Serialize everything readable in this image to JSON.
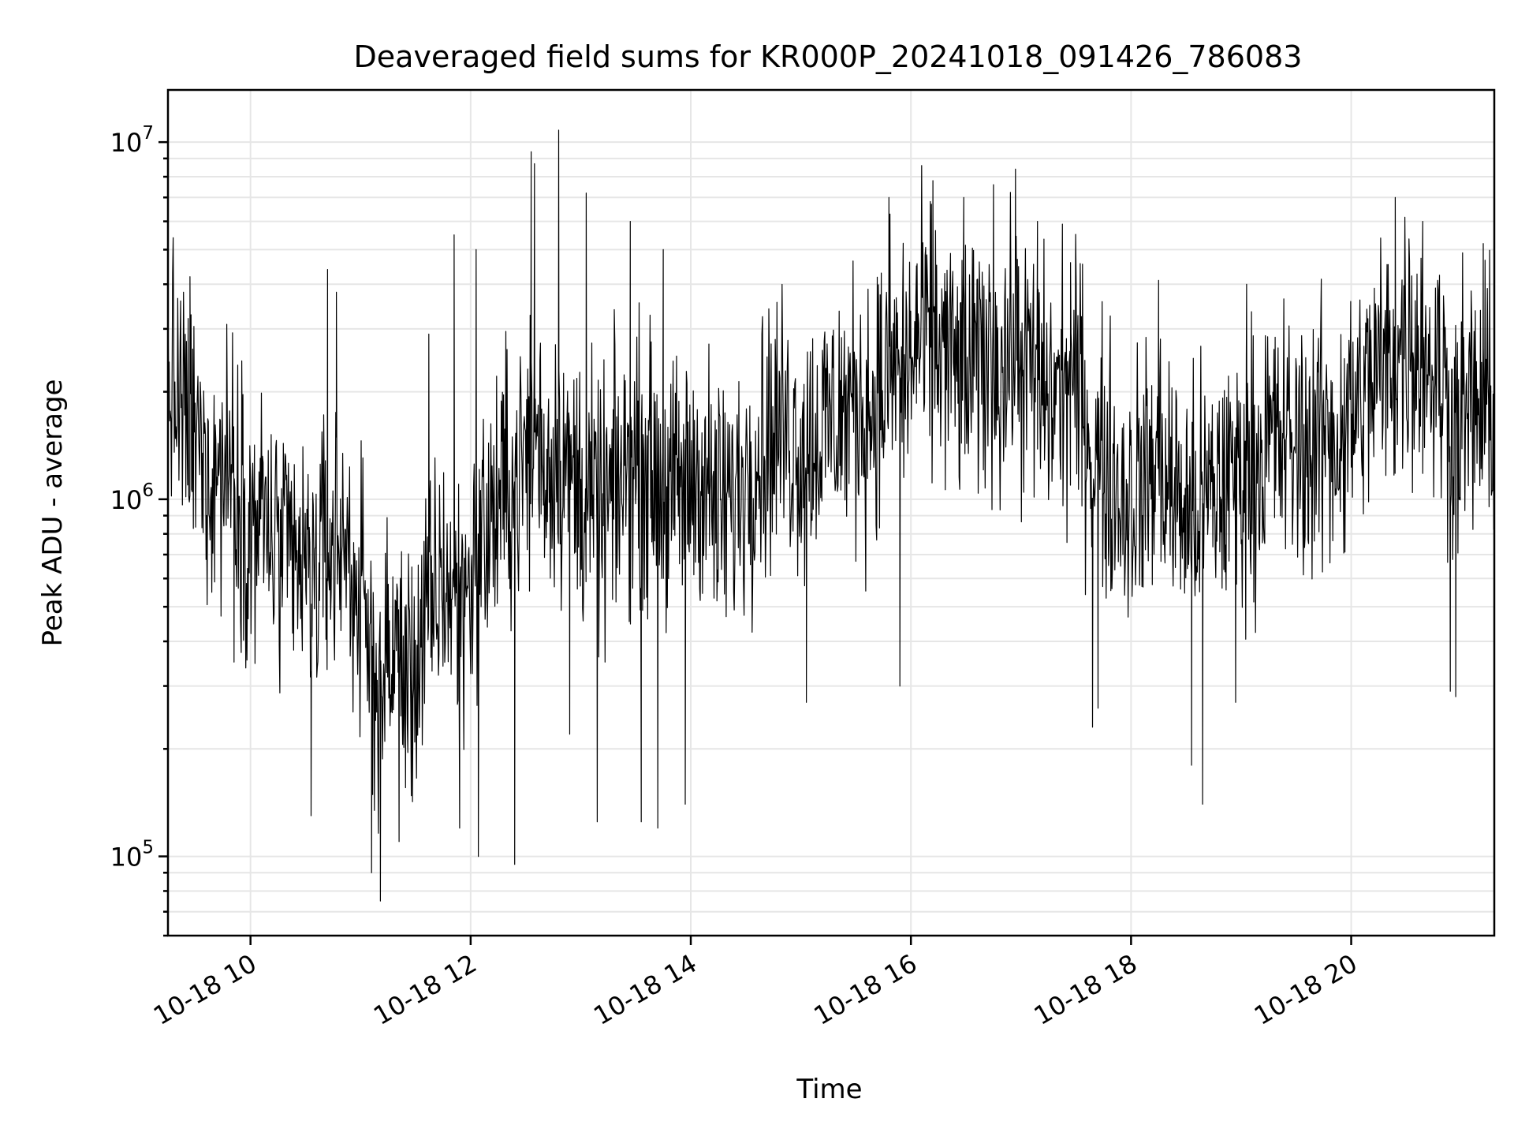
{
  "chart_data": {
    "type": "line",
    "title": "Deaveraged field sums for KR000P_20241018_091426_786083",
    "xlabel": "Time",
    "ylabel": "Peak ADU - average",
    "yscale": "log",
    "ylim": [
      60000,
      14000000
    ],
    "xlim_hours": [
      9.25,
      21.3
    ],
    "grid": true,
    "x_ticks": [
      "10-18 10",
      "10-18 12",
      "10-18 14",
      "10-18 16",
      "10-18 18",
      "10-18 20"
    ],
    "x_tick_hours": [
      10,
      12,
      14,
      16,
      18,
      20
    ],
    "y_ticks": [
      {
        "value": 100000,
        "base": "10",
        "exp": "5"
      },
      {
        "value": 1000000,
        "base": "10",
        "exp": "6"
      },
      {
        "value": 10000000,
        "base": "10",
        "exp": "7"
      }
    ],
    "line_color": "#000000",
    "series": [
      {
        "x": [
          9.25,
          9.45,
          9.65,
          9.85,
          10.0,
          10.1,
          10.25,
          10.4,
          10.55,
          10.7,
          10.85,
          11.0,
          11.1,
          11.2,
          11.3,
          11.45,
          11.6,
          11.75,
          11.9,
          12.05,
          12.2,
          12.35,
          12.5,
          12.58,
          12.7,
          12.78,
          12.9,
          13.05,
          13.2,
          13.35,
          13.5,
          13.65,
          13.8,
          13.95,
          14.1,
          14.25,
          14.4,
          14.55,
          14.7,
          14.85,
          15.0,
          15.15,
          15.3,
          15.45,
          15.6,
          15.75,
          15.85,
          15.95,
          16.05,
          16.2,
          16.35,
          16.5,
          16.65,
          16.75,
          16.85,
          16.95,
          17.1,
          17.25,
          17.4,
          17.55,
          17.65,
          17.8,
          17.95,
          18.1,
          18.25,
          18.4,
          18.55,
          18.7,
          18.85,
          19.0,
          19.15,
          19.3,
          19.45,
          19.6,
          19.75,
          19.9,
          20.05,
          20.2,
          20.35,
          20.5,
          20.65,
          20.8,
          20.95,
          21.1,
          21.3
        ],
        "y": [
          2200000,
          1500000,
          1200000,
          1300000,
          800000,
          900000,
          700000,
          650000,
          600000,
          700000,
          800000,
          500000,
          350000,
          300000,
          400000,
          300000,
          450000,
          600000,
          500000,
          700000,
          900000,
          1100000,
          1300000,
          1600000,
          1200000,
          1400000,
          1200000,
          1000000,
          900000,
          1100000,
          1300000,
          1200000,
          1000000,
          1100000,
          1200000,
          900000,
          1000000,
          1300000,
          1500000,
          1600000,
          1400000,
          1500000,
          1700000,
          1800000,
          1800000,
          2000000,
          2400000,
          2200000,
          2700000,
          2800000,
          2500000,
          2200000,
          2400000,
          2600000,
          2300000,
          2700000,
          2200000,
          1900000,
          2100000,
          2000000,
          1300000,
          1200000,
          1000000,
          1100000,
          1300000,
          1000000,
          900000,
          1000000,
          1100000,
          1200000,
          1300000,
          1500000,
          1400000,
          1400000,
          1500000,
          1500000,
          1800000,
          2200000,
          2400000,
          2800000,
          2600000,
          2200000,
          1700000,
          1800000,
          1700000
        ],
        "spread_decades": 0.35,
        "spikes": [
          [
            9.45,
            4200000
          ],
          [
            9.85,
            350000
          ],
          [
            10.55,
            130000
          ],
          [
            10.7,
            4400000
          ],
          [
            10.78,
            3800000
          ],
          [
            11.1,
            90000
          ],
          [
            11.18,
            75000
          ],
          [
            11.35,
            110000
          ],
          [
            11.62,
            2900000
          ],
          [
            11.85,
            5500000
          ],
          [
            11.9,
            120000
          ],
          [
            12.05,
            5000000
          ],
          [
            12.07,
            100000
          ],
          [
            12.4,
            95000
          ],
          [
            12.55,
            9400000
          ],
          [
            12.58,
            8700000
          ],
          [
            12.8,
            10800000
          ],
          [
            12.9,
            220000
          ],
          [
            13.05,
            7200000
          ],
          [
            13.15,
            125000
          ],
          [
            13.45,
            6000000
          ],
          [
            13.55,
            125000
          ],
          [
            13.7,
            120000
          ],
          [
            13.75,
            5000000
          ],
          [
            13.95,
            140000
          ],
          [
            15.05,
            270000
          ],
          [
            15.8,
            7000000
          ],
          [
            15.9,
            300000
          ],
          [
            16.05,
            4500000
          ],
          [
            16.2,
            7800000
          ],
          [
            16.48,
            7000000
          ],
          [
            16.75,
            7600000
          ],
          [
            16.95,
            8400000
          ],
          [
            17.15,
            6000000
          ],
          [
            17.45,
            4600000
          ],
          [
            17.65,
            230000
          ],
          [
            17.7,
            260000
          ],
          [
            18.25,
            4100000
          ],
          [
            18.55,
            180000
          ],
          [
            18.65,
            140000
          ],
          [
            18.95,
            270000
          ],
          [
            19.05,
            4000000
          ],
          [
            20.4,
            7000000
          ],
          [
            20.65,
            6000000
          ],
          [
            20.9,
            290000
          ],
          [
            20.95,
            280000
          ],
          [
            21.2,
            5200000
          ]
        ]
      }
    ]
  }
}
